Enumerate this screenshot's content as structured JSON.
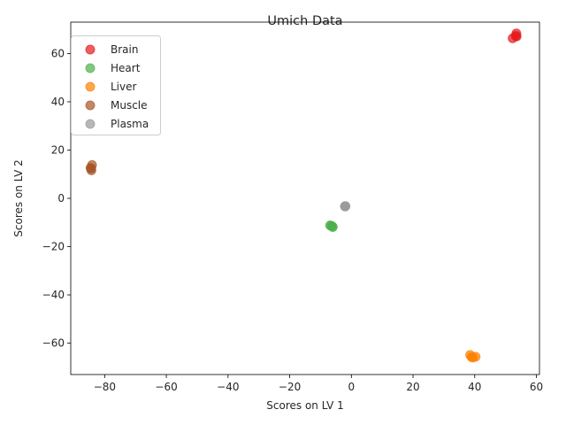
{
  "chart_data": {
    "type": "scatter",
    "title": "Umich Data",
    "xlabel": "Scores on LV 1",
    "ylabel": "Scores on LV 2",
    "xlim": [
      -91,
      61
    ],
    "ylim": [
      -73,
      73
    ],
    "xticks": [
      -80,
      -60,
      -40,
      -20,
      0,
      20,
      40,
      60
    ],
    "yticks": [
      -60,
      -40,
      -20,
      0,
      20,
      40,
      60
    ],
    "xtick_labels": [
      "−80",
      "−60",
      "−40",
      "−20",
      "0",
      "20",
      "40",
      "60"
    ],
    "ytick_labels": [
      "−60",
      "−40",
      "−20",
      "0",
      "20",
      "40",
      "60"
    ],
    "grid": false,
    "legend_position": "top-left",
    "series": [
      {
        "name": "Brain",
        "color": "#e41a1c",
        "points": [
          [
            52.3,
            66.3
          ],
          [
            53.3,
            67.3
          ],
          [
            53.5,
            68.3
          ],
          [
            53.6,
            67.1
          ]
        ]
      },
      {
        "name": "Heart",
        "color": "#4daf4a",
        "points": [
          [
            -6.9,
            -11.2
          ],
          [
            -6.2,
            -11.6
          ],
          [
            -6.0,
            -11.9
          ],
          [
            -6.5,
            -11.4
          ]
        ]
      },
      {
        "name": "Liver",
        "color": "#ff7f00",
        "points": [
          [
            38.5,
            -64.9
          ],
          [
            39.0,
            -65.8
          ],
          [
            40.3,
            -65.6
          ],
          [
            39.4,
            -66.0
          ]
        ]
      },
      {
        "name": "Muscle",
        "color": "#a65628",
        "points": [
          [
            -84.6,
            12.6
          ],
          [
            -84.1,
            13.8
          ],
          [
            -84.3,
            11.6
          ],
          [
            -84.4,
            12.4
          ]
        ]
      },
      {
        "name": "Plasma",
        "color": "#999999",
        "points": [
          [
            -2.1,
            -3.3
          ],
          [
            -1.9,
            -3.2
          ],
          [
            -2.0,
            -3.4
          ]
        ]
      }
    ]
  }
}
